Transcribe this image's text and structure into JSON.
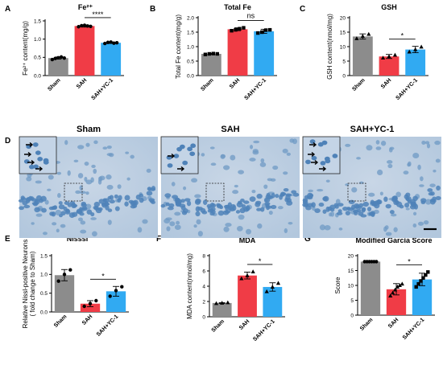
{
  "colors": {
    "Sham": "#8c8c8c",
    "SAH": "#f03c46",
    "SAH+YC-1": "#31aaf2"
  },
  "chart_data": [
    {
      "type": "bar",
      "panel": "A",
      "title": "Fe²⁺",
      "ylabel": "Fe²⁺ content(mg/g)",
      "categories": [
        "Sham",
        "SAH",
        "SAH+YC-1"
      ],
      "values": [
        0.48,
        1.36,
        0.9
      ],
      "errors": [
        0.03,
        0.03,
        0.02
      ],
      "points": [
        [
          0.44,
          0.47,
          0.49,
          0.51,
          0.48
        ],
        [
          1.34,
          1.37,
          1.38,
          1.36,
          1.35
        ],
        [
          0.88,
          0.91,
          0.92,
          0.89,
          0.9
        ]
      ],
      "point_shape": "circle",
      "ylim": [
        0,
        1.5
      ],
      "yticks": [
        0.0,
        0.5,
        1.0,
        1.5
      ],
      "tick_decimals": 1,
      "comparison": {
        "from": 1,
        "to": 2,
        "label": "****"
      }
    },
    {
      "type": "bar",
      "panel": "B",
      "title": "Total Fe",
      "ylabel": "Total Fe content(mg/g)",
      "categories": [
        "Sham",
        "SAH",
        "SAH+YC-1"
      ],
      "values": [
        0.75,
        1.6,
        1.53
      ],
      "errors": [
        0.02,
        0.05,
        0.07
      ],
      "points": [
        [
          0.73,
          0.75,
          0.76,
          0.75
        ],
        [
          1.55,
          1.58,
          1.62,
          1.65
        ],
        [
          1.47,
          1.5,
          1.57,
          1.58
        ]
      ],
      "point_shape": "square",
      "ylim": [
        0,
        2.0
      ],
      "yticks": [
        0.0,
        0.5,
        1.0,
        1.5,
        2.0
      ],
      "tick_decimals": 1,
      "comparison": {
        "from": 1,
        "to": 2,
        "label": "ns"
      }
    },
    {
      "type": "bar",
      "panel": "C",
      "title": "GSH",
      "ylabel": "GSH content(nmol/mg)",
      "categories": [
        "Sham",
        "SAH",
        "SAH+YC-1"
      ],
      "values": [
        13.5,
        6.6,
        9.0
      ],
      "errors": [
        0.9,
        0.7,
        1.1
      ],
      "points": [
        [
          12.8,
          13.6,
          14.3
        ],
        [
          6.1,
          6.6,
          7.1
        ],
        [
          8.2,
          9.0,
          9.9
        ]
      ],
      "point_shape": "triangle",
      "ylim": [
        0,
        20
      ],
      "yticks": [
        0,
        5,
        10,
        15,
        20
      ],
      "tick_decimals": 0,
      "comparison": {
        "from": 1,
        "to": 2,
        "label": "*"
      }
    },
    {
      "type": "bar",
      "panel": "E",
      "title": "Nisssl",
      "ylabel": "Relative Nissl-positive Neurons",
      "ylabel2": "( fold change to Sham)",
      "categories": [
        "Sham",
        "SAH",
        "SAH+YC-1"
      ],
      "values": [
        0.98,
        0.22,
        0.55
      ],
      "errors": [
        0.15,
        0.08,
        0.13
      ],
      "points": [
        [
          0.82,
          1.0,
          1.12
        ],
        [
          0.15,
          0.22,
          0.3
        ],
        [
          0.42,
          0.57,
          0.67
        ]
      ],
      "point_shape": "circle",
      "ylim": [
        0,
        1.5
      ],
      "yticks": [
        0.0,
        0.5,
        1.0,
        1.5
      ],
      "tick_decimals": 1,
      "comparison": {
        "from": 1,
        "to": 2,
        "label": "*"
      }
    },
    {
      "type": "bar",
      "panel": "F",
      "title": "MDA",
      "ylabel": "MDA content(nmol/mg)",
      "categories": [
        "Sham",
        "SAH",
        "SAH+YC-1"
      ],
      "values": [
        1.8,
        5.4,
        3.9
      ],
      "errors": [
        0.05,
        0.45,
        0.55
      ],
      "points": [
        [
          1.75,
          1.8,
          1.85
        ],
        [
          5.0,
          5.4,
          5.9
        ],
        [
          3.3,
          3.9,
          4.4
        ]
      ],
      "point_shape": "triangle",
      "ylim": [
        0,
        8
      ],
      "yticks": [
        0,
        2,
        4,
        6,
        8
      ],
      "tick_decimals": 0,
      "comparison": {
        "from": 1,
        "to": 2,
        "label": "*"
      }
    },
    {
      "type": "bar",
      "panel": "G",
      "title": "Modified Garcia Score",
      "ylabel": "Score",
      "categories": [
        "Sham",
        "SAH",
        "SAH+YC-1"
      ],
      "values": [
        18.0,
        8.7,
        12.0
      ],
      "errors": [
        0.0,
        1.9,
        2.1
      ],
      "points": [
        [
          18,
          18,
          18,
          18,
          18,
          18
        ],
        [
          6.5,
          7.5,
          8.5,
          9.5,
          10,
          10.5
        ],
        [
          9.5,
          10.5,
          11.5,
          12.5,
          13.5,
          14.5
        ]
      ],
      "point_shape": "mixed",
      "ylim": [
        0,
        20
      ],
      "yticks": [
        0,
        5,
        10,
        15,
        20
      ],
      "tick_decimals": 0,
      "comparison": {
        "from": 1,
        "to": 2,
        "label": "*"
      }
    }
  ],
  "histology": {
    "panel": "D",
    "labels": [
      "Sham",
      "SAH",
      "SAH+YC-1"
    ]
  }
}
